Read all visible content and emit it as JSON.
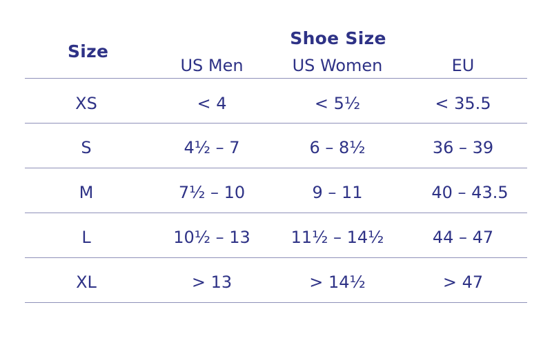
{
  "headers": {
    "size": "Size",
    "shoe_size": "Shoe Size",
    "columns": [
      "US Men",
      "US Women",
      "EU"
    ]
  },
  "rows": [
    {
      "size": "XS",
      "us_men": "< 4",
      "us_women": "< 5½",
      "eu": "< 35.5"
    },
    {
      "size": "S",
      "us_men": "4½ – 7",
      "us_women": "6 – 8½",
      "eu": "36 – 39"
    },
    {
      "size": "M",
      "us_men": "7½ – 10",
      "us_women": "9 – 11",
      "eu": "40 – 43.5"
    },
    {
      "size": "L",
      "us_men": "10½ – 13",
      "us_women": "11½ – 14½",
      "eu": "44 – 47"
    },
    {
      "size": "XL",
      "us_men": "> 13",
      "us_women": "> 14½",
      "eu": "> 47"
    }
  ],
  "colors": {
    "text": "#2e3286",
    "rule": "#8e90b8"
  }
}
